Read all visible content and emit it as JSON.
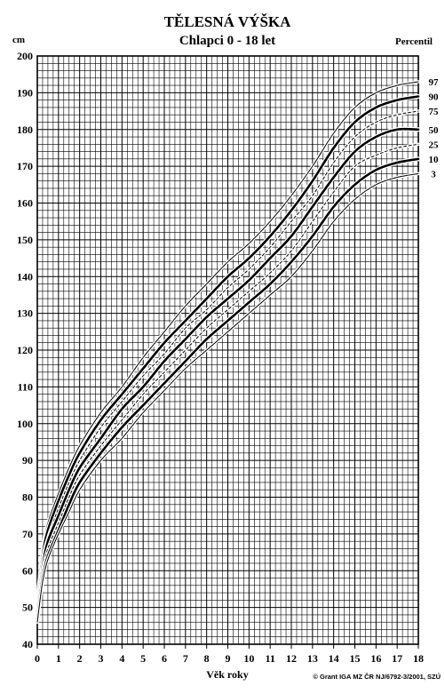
{
  "chart_data": {
    "type": "line",
    "title": "TĚLESNÁ VÝŠKA",
    "subtitle": "Chlapci 0 - 18 let",
    "ylabel": "cm",
    "xlabel": "Věk roky",
    "legend_title": "Percentil",
    "legend_placement": "right",
    "credit": "© Grant IGA MZ ČR NJ/6792-3/2001, SZÚ",
    "xlim": [
      0,
      18
    ],
    "ylim": [
      40,
      200
    ],
    "x_ticks": [
      0,
      1,
      2,
      3,
      4,
      5,
      6,
      7,
      8,
      9,
      10,
      11,
      12,
      13,
      14,
      15,
      16,
      17,
      18
    ],
    "y_ticks": [
      40,
      50,
      60,
      70,
      80,
      90,
      100,
      110,
      120,
      130,
      140,
      150,
      160,
      170,
      180,
      190,
      200
    ],
    "grid": true,
    "x": [
      0,
      0.25,
      0.5,
      1,
      1.5,
      2,
      3,
      4,
      5,
      6,
      7,
      8,
      9,
      10,
      11,
      12,
      13,
      14,
      15,
      16,
      17,
      18
    ],
    "series": [
      {
        "name": "97",
        "style": "thin",
        "values": [
          52,
          66,
          73,
          81,
          88,
          94,
          103,
          110,
          118,
          125,
          132,
          138,
          144,
          149,
          155,
          162,
          170,
          179,
          186,
          190,
          192,
          193
        ]
      },
      {
        "name": "90",
        "style": "bold",
        "values": [
          51,
          64,
          71,
          79,
          86,
          92,
          101,
          108,
          115,
          122,
          128,
          134,
          140,
          145,
          151,
          158,
          166,
          175,
          182,
          186,
          188,
          189
        ]
      },
      {
        "name": "75",
        "style": "dashed",
        "values": [
          50,
          63,
          69,
          77,
          84,
          90,
          99,
          106,
          113,
          119,
          126,
          131,
          137,
          142,
          148,
          155,
          162,
          171,
          178,
          182,
          184,
          185
        ]
      },
      {
        "name": "50",
        "style": "bold",
        "values": [
          49,
          61,
          68,
          75,
          82,
          88,
          96,
          104,
          110,
          117,
          123,
          129,
          134,
          139,
          145,
          151,
          159,
          167,
          174,
          178,
          180,
          180
        ]
      },
      {
        "name": "25",
        "style": "dashed",
        "values": [
          48,
          60,
          66,
          73,
          80,
          86,
          94,
          101,
          108,
          114,
          120,
          126,
          131,
          136,
          141,
          147,
          155,
          163,
          170,
          173,
          175,
          176
        ]
      },
      {
        "name": "10",
        "style": "bold",
        "values": [
          47,
          58,
          64,
          71,
          78,
          84,
          92,
          99,
          105,
          111,
          117,
          123,
          128,
          133,
          138,
          144,
          151,
          159,
          165,
          169,
          171,
          172
        ]
      },
      {
        "name": "3",
        "style": "thin",
        "values": [
          46,
          57,
          63,
          70,
          76,
          82,
          90,
          96,
          103,
          109,
          115,
          120,
          125,
          130,
          135,
          140,
          147,
          155,
          161,
          165,
          167,
          168
        ]
      }
    ]
  }
}
